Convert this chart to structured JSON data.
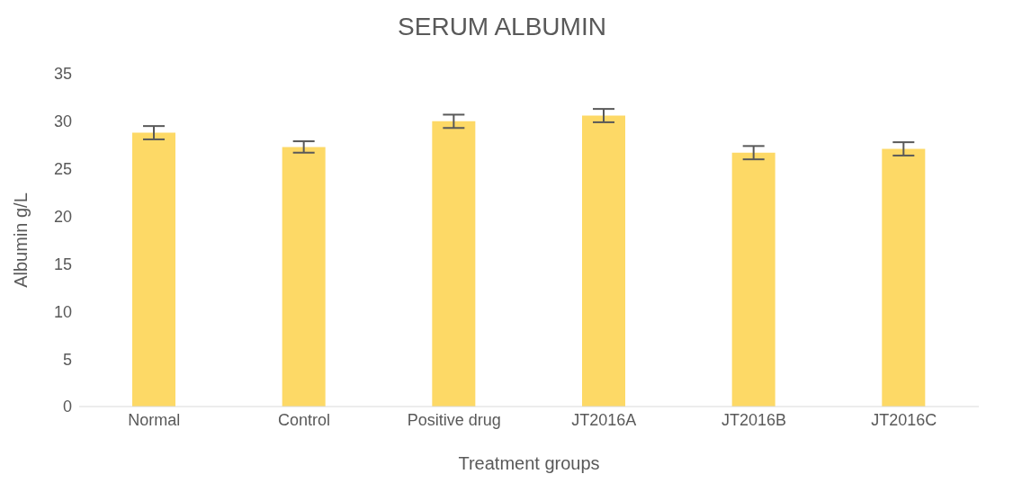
{
  "chart_data": {
    "type": "bar",
    "title": "SERUM ALBUMIN",
    "xlabel": "Treatment groups",
    "ylabel": "Albumin g/L",
    "categories": [
      "Normal",
      "Control",
      "Positive drug",
      "JT2016A",
      "JT2016B",
      "JT2016C"
    ],
    "values": [
      28.8,
      27.3,
      30.0,
      30.6,
      26.7,
      27.1
    ],
    "errors": [
      0.7,
      0.6,
      0.7,
      0.7,
      0.7,
      0.7
    ],
    "color": "#fdd966",
    "ylim": [
      0,
      35
    ],
    "yticks": [
      0,
      5,
      10,
      15,
      20,
      25,
      30,
      35
    ],
    "grid": false,
    "legend": false
  }
}
